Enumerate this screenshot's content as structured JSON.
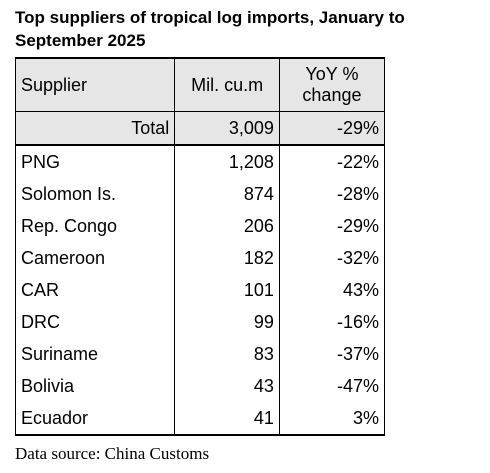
{
  "title": "Top suppliers of tropical log imports, January to September 2025",
  "table": {
    "header": [
      "Supplier",
      "Mil. cu.m",
      "YoY % change"
    ],
    "total": [
      "Total",
      "3,009",
      "-29%"
    ],
    "rows": [
      [
        "PNG",
        "1,208",
        "-22%"
      ],
      [
        "Solomon Is.",
        "874",
        "-28%"
      ],
      [
        "Rep. Congo",
        "206",
        "-29%"
      ],
      [
        "Cameroon",
        "182",
        "-32%"
      ],
      [
        "CAR",
        "101",
        "43%"
      ],
      [
        "DRC",
        "99",
        "-16%"
      ],
      [
        "Suriname",
        "83",
        "-37%"
      ],
      [
        "Bolivia",
        "43",
        "-47%"
      ],
      [
        "Ecuador",
        "41",
        "3%"
      ]
    ]
  },
  "source": "Data source: China Customs"
}
